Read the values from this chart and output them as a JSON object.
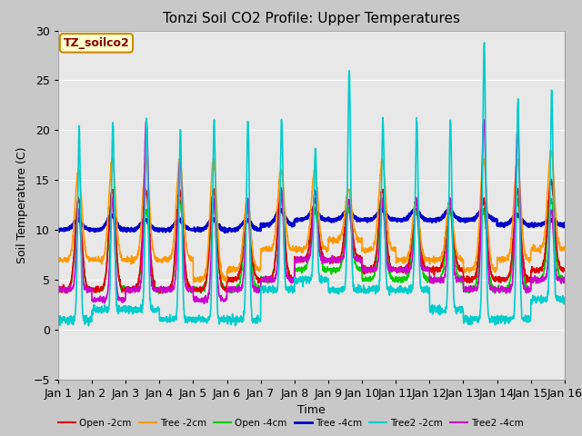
{
  "title": "Tonzi Soil CO2 Profile: Upper Temperatures",
  "xlabel": "Time",
  "ylabel": "Soil Temperature (C)",
  "ylim": [
    -5,
    30
  ],
  "xlim": [
    0,
    15
  ],
  "yticks": [
    -5,
    0,
    5,
    10,
    15,
    20,
    25,
    30
  ],
  "xtick_labels": [
    "Jan 1",
    "Jan 2",
    "Jan 3",
    "Jan 4",
    "Jan 5",
    "Jan 6",
    "Jan 7",
    "Jan 8",
    "Jan 9",
    "Jan 10",
    "Jan 11",
    "Jan 12",
    "Jan 13",
    "Jan 14",
    "Jan 15",
    "Jan 16"
  ],
  "series": {
    "Open -2cm": {
      "color": "#dd0000",
      "lw": 1.2
    },
    "Tree -2cm": {
      "color": "#ff9900",
      "lw": 1.2
    },
    "Open -4cm": {
      "color": "#00cc00",
      "lw": 1.2
    },
    "Tree -4cm": {
      "color": "#0000cc",
      "lw": 2.0
    },
    "Tree2 -2cm": {
      "color": "#00cccc",
      "lw": 1.2
    },
    "Tree2 -4cm": {
      "color": "#cc00cc",
      "lw": 1.2
    }
  },
  "annotation_text": "TZ_soilco2",
  "annotation_color": "#880000",
  "annotation_bg": "#ffffcc",
  "annotation_border": "#cc8800",
  "bg_color": "#e8e8e8",
  "grid_color": "#ffffff",
  "n_days": 15,
  "ppd": 144
}
